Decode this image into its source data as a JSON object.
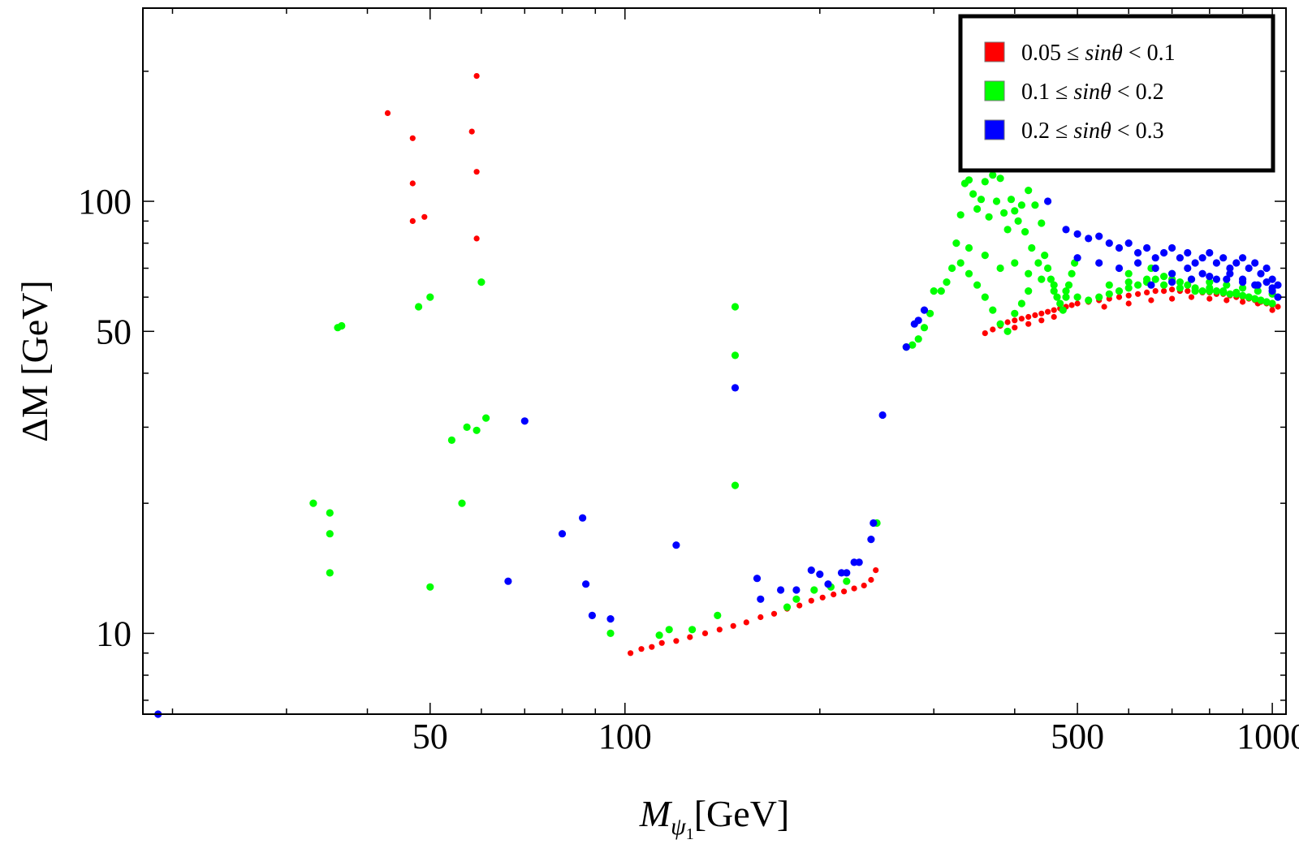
{
  "chart_data": {
    "type": "scatter",
    "title": "",
    "xlabel_main": "M",
    "xlabel_sub": "ψ",
    "xlabel_subsub": "1",
    "xlabel_unit": "[GeV]",
    "ylabel": "ΔM [GeV]",
    "xscale": "log",
    "yscale": "log",
    "xlim": [
      18,
      1050
    ],
    "ylim": [
      6.5,
      280
    ],
    "xticks": [
      50,
      100,
      500,
      1000
    ],
    "xtick_labels": [
      "50",
      "100",
      "500",
      "1000"
    ],
    "yticks": [
      10,
      50,
      100
    ],
    "ytick_labels": [
      "10",
      "50",
      "100"
    ],
    "legend_position": "top-right",
    "series": [
      {
        "name": "0.05 ≤ sinθ < 0.1",
        "label_parts": [
          "0.05",
          "≤",
          "sinθ",
          "<",
          "0.1"
        ],
        "color": "#ff0000",
        "points": [
          [
            43,
            160
          ],
          [
            47,
            140
          ],
          [
            47,
            110
          ],
          [
            47,
            90
          ],
          [
            49,
            92
          ],
          [
            58,
            145
          ],
          [
            59,
            195
          ],
          [
            59,
            117
          ],
          [
            59,
            82
          ],
          [
            102,
            9
          ],
          [
            106,
            9.2
          ],
          [
            110,
            9.3
          ],
          [
            114,
            9.5
          ],
          [
            120,
            9.6
          ],
          [
            126,
            9.8
          ],
          [
            133,
            10
          ],
          [
            140,
            10.2
          ],
          [
            147,
            10.4
          ],
          [
            154,
            10.6
          ],
          [
            162,
            10.9
          ],
          [
            170,
            11.1
          ],
          [
            178,
            11.4
          ],
          [
            186,
            11.6
          ],
          [
            194,
            11.9
          ],
          [
            202,
            12.1
          ],
          [
            210,
            12.3
          ],
          [
            218,
            12.5
          ],
          [
            226,
            12.7
          ],
          [
            234,
            12.9
          ],
          [
            240,
            13.3
          ],
          [
            244,
            14
          ],
          [
            360,
            49.5
          ],
          [
            370,
            50.5
          ],
          [
            380,
            51.5
          ],
          [
            390,
            52.5
          ],
          [
            400,
            53
          ],
          [
            410,
            53.5
          ],
          [
            420,
            54
          ],
          [
            430,
            54.5
          ],
          [
            440,
            55
          ],
          [
            450,
            55.5
          ],
          [
            460,
            56
          ],
          [
            470,
            56.5
          ],
          [
            480,
            57
          ],
          [
            490,
            57.5
          ],
          [
            400,
            51
          ],
          [
            420,
            52
          ],
          [
            440,
            53
          ],
          [
            460,
            54
          ],
          [
            500,
            58
          ],
          [
            520,
            58.5
          ],
          [
            540,
            59
          ],
          [
            560,
            59.5
          ],
          [
            580,
            60
          ],
          [
            600,
            60.5
          ],
          [
            620,
            61
          ],
          [
            640,
            61.5
          ],
          [
            660,
            62
          ],
          [
            680,
            62
          ],
          [
            700,
            62.5
          ],
          [
            720,
            62
          ],
          [
            740,
            62
          ],
          [
            760,
            62
          ],
          [
            780,
            61.5
          ],
          [
            800,
            61.5
          ],
          [
            820,
            61
          ],
          [
            840,
            61
          ],
          [
            860,
            60.5
          ],
          [
            880,
            60
          ],
          [
            900,
            60
          ],
          [
            920,
            59.5
          ],
          [
            940,
            59
          ],
          [
            960,
            58.5
          ],
          [
            980,
            58
          ],
          [
            1000,
            57.5
          ],
          [
            1020,
            57
          ],
          [
            550,
            57
          ],
          [
            600,
            58
          ],
          [
            650,
            59
          ],
          [
            700,
            59.5
          ],
          [
            750,
            60
          ],
          [
            800,
            59.5
          ],
          [
            850,
            59
          ],
          [
            900,
            58.5
          ],
          [
            950,
            58
          ],
          [
            1000,
            56
          ]
        ]
      },
      {
        "name": "0.1 ≤ sinθ < 0.2",
        "label_parts": [
          "0.1",
          "≤",
          "sinθ",
          "<",
          "0.2"
        ],
        "color": "#00ff00",
        "points": [
          [
            33,
            20
          ],
          [
            35,
            19
          ],
          [
            35,
            17
          ],
          [
            35,
            13.8
          ],
          [
            36,
            51
          ],
          [
            36.5,
            51.5
          ],
          [
            48,
            57
          ],
          [
            50,
            60
          ],
          [
            50,
            12.8
          ],
          [
            54,
            28
          ],
          [
            56,
            20
          ],
          [
            57,
            30
          ],
          [
            59,
            29.5
          ],
          [
            60,
            65
          ],
          [
            61,
            31.5
          ],
          [
            95,
            10
          ],
          [
            113,
            9.9
          ],
          [
            117,
            10.2
          ],
          [
            127,
            10.2
          ],
          [
            139,
            11
          ],
          [
            148,
            57
          ],
          [
            148,
            44
          ],
          [
            148,
            22
          ],
          [
            178,
            11.5
          ],
          [
            184,
            12
          ],
          [
            196,
            12.6
          ],
          [
            208,
            12.8
          ],
          [
            220,
            13.2
          ],
          [
            245,
            18
          ],
          [
            272,
            46
          ],
          [
            278,
            46.5
          ],
          [
            284,
            48
          ],
          [
            290,
            51
          ],
          [
            296,
            55
          ],
          [
            300,
            62
          ],
          [
            308,
            62
          ],
          [
            314,
            65
          ],
          [
            320,
            70
          ],
          [
            325,
            80
          ],
          [
            330,
            93
          ],
          [
            335,
            110
          ],
          [
            340,
            112
          ],
          [
            345,
            104
          ],
          [
            350,
            96
          ],
          [
            355,
            101
          ],
          [
            360,
            111
          ],
          [
            365,
            92
          ],
          [
            370,
            115
          ],
          [
            375,
            100
          ],
          [
            380,
            113
          ],
          [
            385,
            94
          ],
          [
            390,
            86
          ],
          [
            395,
            101
          ],
          [
            400,
            95
          ],
          [
            405,
            90
          ],
          [
            410,
            98
          ],
          [
            415,
            85
          ],
          [
            420,
            106
          ],
          [
            425,
            78
          ],
          [
            430,
            98
          ],
          [
            435,
            72
          ],
          [
            440,
            89
          ],
          [
            445,
            75
          ],
          [
            450,
            70
          ],
          [
            455,
            66
          ],
          [
            460,
            62
          ],
          [
            465,
            60
          ],
          [
            470,
            58
          ],
          [
            475,
            56
          ],
          [
            480,
            60
          ],
          [
            485,
            64
          ],
          [
            490,
            68
          ],
          [
            495,
            72
          ],
          [
            330,
            72
          ],
          [
            340,
            68
          ],
          [
            350,
            64
          ],
          [
            360,
            60
          ],
          [
            370,
            56
          ],
          [
            380,
            52
          ],
          [
            390,
            50
          ],
          [
            400,
            55
          ],
          [
            410,
            58
          ],
          [
            420,
            62
          ],
          [
            340,
            78
          ],
          [
            360,
            75
          ],
          [
            380,
            70
          ],
          [
            400,
            72
          ],
          [
            420,
            68
          ],
          [
            440,
            66
          ],
          [
            460,
            64
          ],
          [
            480,
            62
          ],
          [
            500,
            60
          ],
          [
            520,
            59
          ],
          [
            540,
            60
          ],
          [
            560,
            61
          ],
          [
            580,
            62
          ],
          [
            600,
            63
          ],
          [
            620,
            64
          ],
          [
            640,
            65
          ],
          [
            660,
            66
          ],
          [
            680,
            67
          ],
          [
            700,
            66
          ],
          [
            720,
            65
          ],
          [
            740,
            64
          ],
          [
            760,
            63
          ],
          [
            780,
            62
          ],
          [
            800,
            62
          ],
          [
            820,
            62
          ],
          [
            840,
            61.5
          ],
          [
            860,
            61
          ],
          [
            880,
            61
          ],
          [
            900,
            60.5
          ],
          [
            920,
            60
          ],
          [
            940,
            59.5
          ],
          [
            960,
            59
          ],
          [
            980,
            58.5
          ],
          [
            1000,
            58
          ],
          [
            560,
            64
          ],
          [
            600,
            65
          ],
          [
            640,
            66
          ],
          [
            680,
            64
          ],
          [
            720,
            63
          ],
          [
            760,
            62
          ],
          [
            800,
            63
          ],
          [
            840,
            62
          ],
          [
            880,
            61.5
          ],
          [
            920,
            60
          ],
          [
            600,
            68
          ],
          [
            650,
            70
          ],
          [
            700,
            68
          ],
          [
            750,
            66
          ],
          [
            800,
            65
          ],
          [
            850,
            64
          ],
          [
            900,
            63
          ],
          [
            950,
            62
          ],
          [
            1000,
            61
          ]
        ]
      },
      {
        "name": "0.2 ≤ sinθ < 0.3",
        "label_parts": [
          "0.2",
          "≤",
          "sinθ",
          "<",
          "0.3"
        ],
        "color": "#0000ff",
        "points": [
          [
            19,
            6.5
          ],
          [
            66,
            13.2
          ],
          [
            70,
            31
          ],
          [
            80,
            17
          ],
          [
            86,
            18.5
          ],
          [
            87,
            13
          ],
          [
            89,
            11
          ],
          [
            95,
            10.8
          ],
          [
            120,
            16
          ],
          [
            148,
            37
          ],
          [
            160,
            13.4
          ],
          [
            162,
            12
          ],
          [
            174,
            12.6
          ],
          [
            184,
            12.6
          ],
          [
            194,
            14
          ],
          [
            200,
            13.7
          ],
          [
            206,
            13
          ],
          [
            216,
            13.8
          ],
          [
            220,
            13.8
          ],
          [
            226,
            14.6
          ],
          [
            230,
            14.6
          ],
          [
            240,
            16.5
          ],
          [
            242,
            18
          ],
          [
            250,
            32
          ],
          [
            272,
            46
          ],
          [
            280,
            52
          ],
          [
            284,
            53
          ],
          [
            290,
            56
          ],
          [
            450,
            100
          ],
          [
            480,
            86
          ],
          [
            500,
            84
          ],
          [
            520,
            82
          ],
          [
            540,
            83
          ],
          [
            560,
            80
          ],
          [
            580,
            78
          ],
          [
            600,
            80
          ],
          [
            620,
            76
          ],
          [
            640,
            78
          ],
          [
            660,
            74
          ],
          [
            680,
            76
          ],
          [
            700,
            78
          ],
          [
            720,
            74
          ],
          [
            740,
            76
          ],
          [
            760,
            72
          ],
          [
            780,
            74
          ],
          [
            800,
            76
          ],
          [
            820,
            72
          ],
          [
            840,
            74
          ],
          [
            860,
            70
          ],
          [
            880,
            72
          ],
          [
            900,
            74
          ],
          [
            920,
            70
          ],
          [
            940,
            72
          ],
          [
            960,
            68
          ],
          [
            980,
            70
          ],
          [
            1000,
            66
          ],
          [
            1020,
            64
          ],
          [
            500,
            74
          ],
          [
            540,
            72
          ],
          [
            580,
            70
          ],
          [
            620,
            72
          ],
          [
            660,
            70
          ],
          [
            700,
            68
          ],
          [
            740,
            70
          ],
          [
            780,
            68
          ],
          [
            820,
            66
          ],
          [
            860,
            68
          ],
          [
            900,
            66
          ],
          [
            940,
            64
          ],
          [
            980,
            65
          ],
          [
            1000,
            62
          ],
          [
            1020,
            60
          ],
          [
            650,
            64
          ],
          [
            700,
            65
          ],
          [
            750,
            66
          ],
          [
            800,
            67
          ],
          [
            850,
            66
          ],
          [
            900,
            65
          ],
          [
            950,
            64
          ],
          [
            1000,
            63
          ]
        ]
      }
    ]
  }
}
